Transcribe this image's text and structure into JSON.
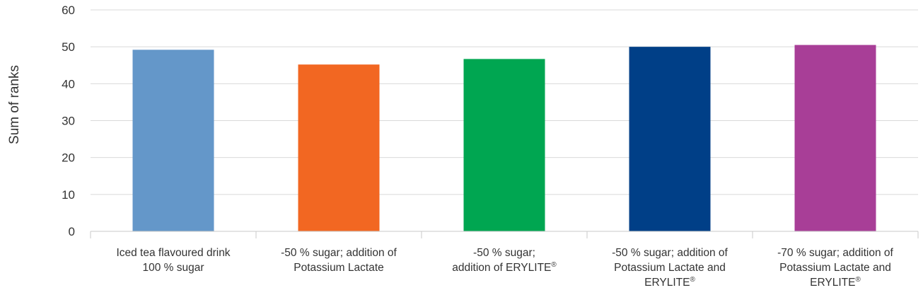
{
  "chart_data": {
    "type": "bar",
    "title": "",
    "xlabel": "",
    "ylabel": "Sum of ranks",
    "ylim": [
      0,
      60
    ],
    "yticks": [
      0,
      10,
      20,
      30,
      40,
      50,
      60
    ],
    "grid": true,
    "categories": [
      {
        "lines": [
          "Iced tea flavoured drink",
          "100 % sugar"
        ],
        "value": 49.2,
        "color": "#6497c9"
      },
      {
        "lines": [
          "-50 % sugar; addition of",
          "Potassium Lactate"
        ],
        "value": 45.2,
        "color": "#f26722"
      },
      {
        "lines": [
          "-50 % sugar;",
          "addition of ERYLITE®"
        ],
        "value": 46.7,
        "color": "#00a651"
      },
      {
        "lines": [
          "-50 % sugar; addition of",
          "Potassium Lactate and",
          "ERYLITE®"
        ],
        "value": 50.0,
        "color": "#003f87"
      },
      {
        "lines": [
          "-70 % sugar; addition of",
          "Potassium Lactate and",
          "ERYLITE®"
        ],
        "value": 50.5,
        "color": "#a83e97"
      }
    ]
  }
}
